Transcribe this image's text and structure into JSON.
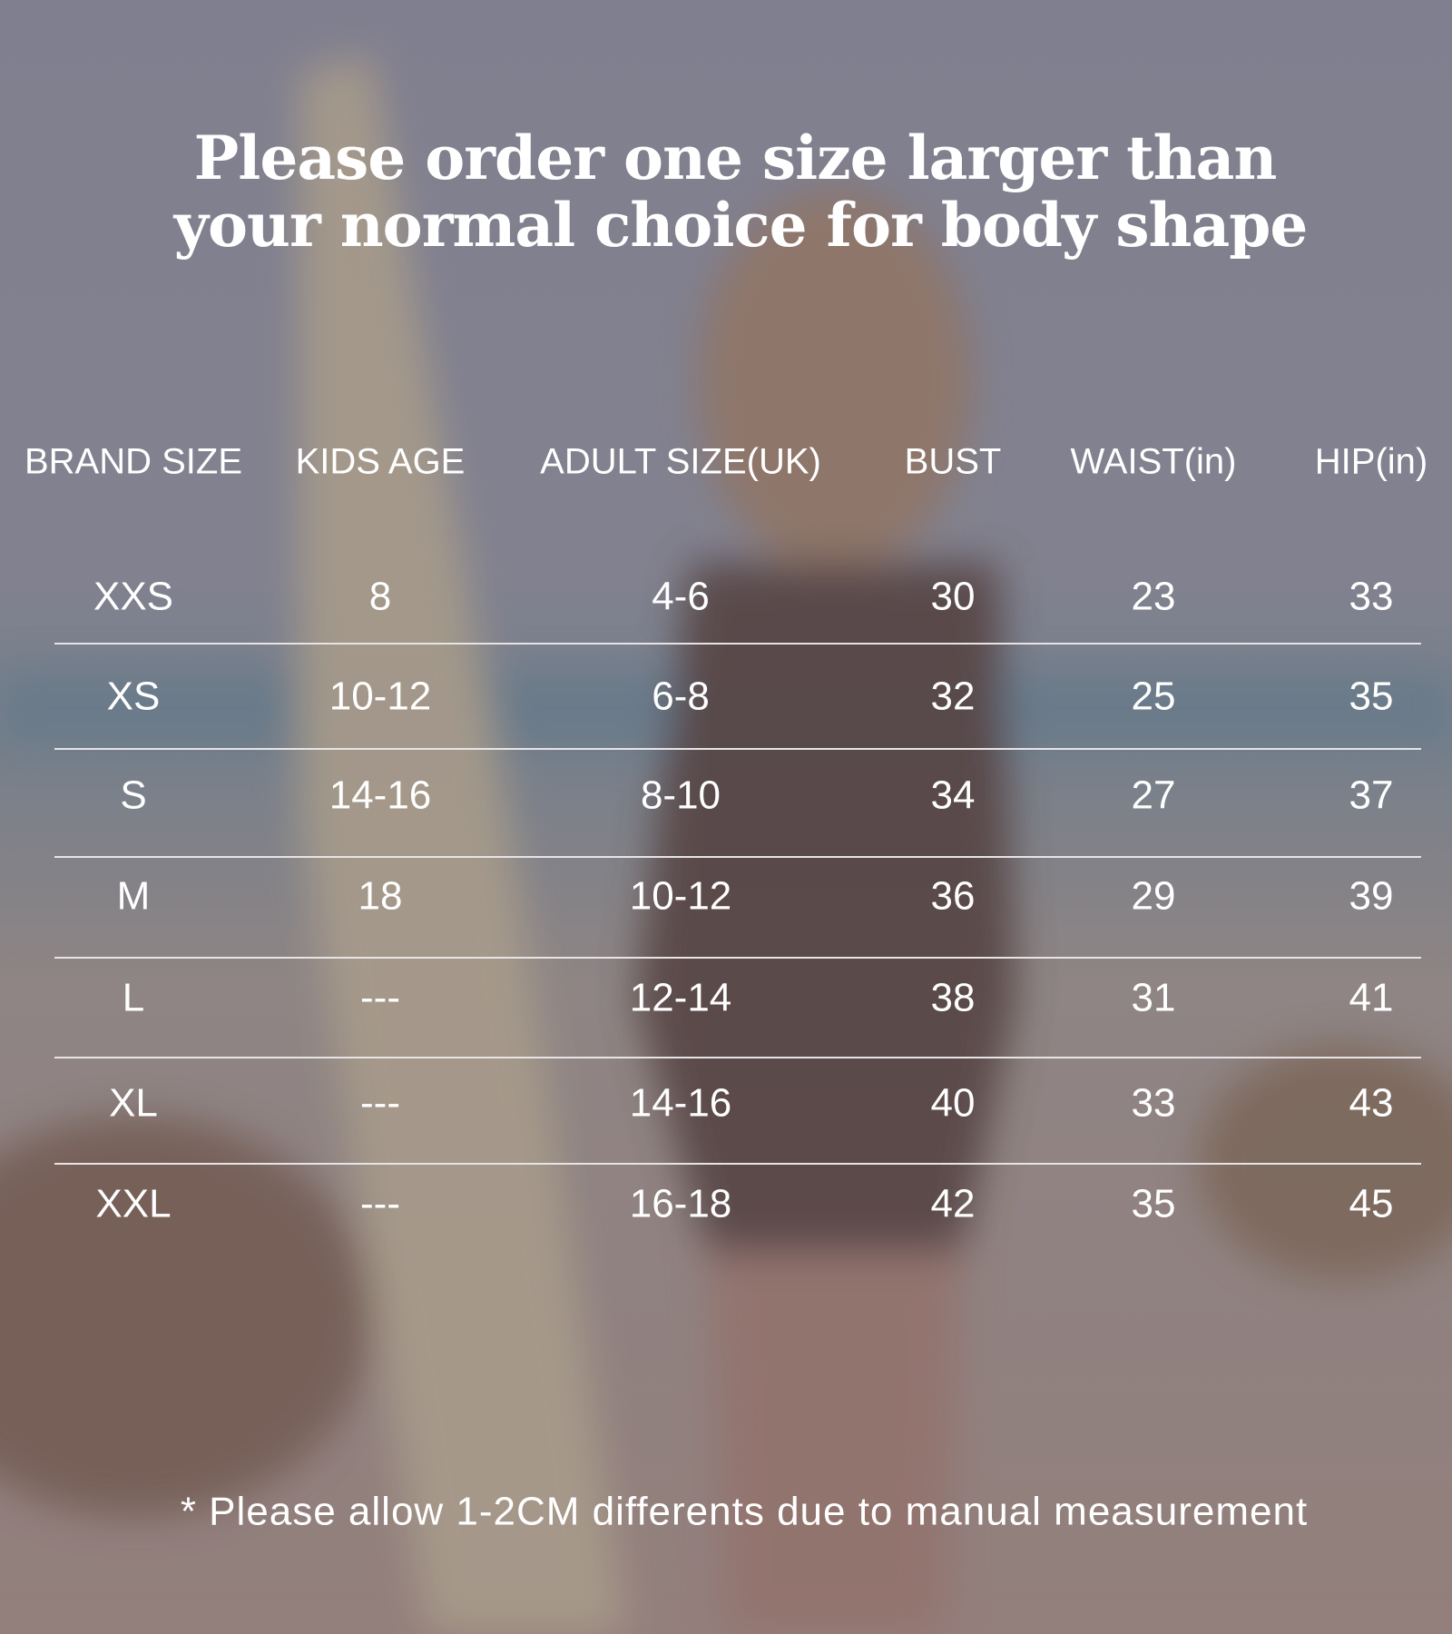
{
  "title_lines": [
    "Please order one size larger than",
    "your normal choice for body shape"
  ],
  "table": {
    "headers": [
      "BRAND SIZE",
      "KIDS AGE",
      "ADULT SIZE(UK)",
      "BUST",
      "WAIST(in)",
      "HIP(in)"
    ],
    "rows": [
      [
        "XXS",
        "8",
        "4-6",
        30,
        23,
        33
      ],
      [
        "XS",
        "10-12",
        "6-8",
        32,
        25,
        35
      ],
      [
        "S",
        "14-16",
        "8-10",
        34,
        27,
        37
      ],
      [
        "M",
        "18",
        "10-12",
        36,
        29,
        39
      ],
      [
        "L",
        "---",
        "12-14",
        38,
        31,
        41
      ],
      [
        "XL",
        "---",
        "14-16",
        40,
        33,
        43
      ],
      [
        "XXL",
        "---",
        "16-18",
        42,
        35,
        45
      ]
    ]
  },
  "footnote": "* Please allow 1-2CM differents due to manual measurement"
}
